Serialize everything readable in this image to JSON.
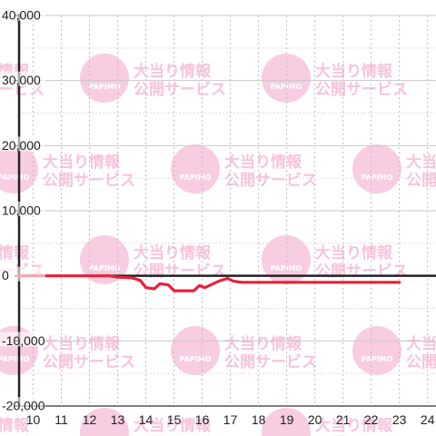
{
  "watermark": {
    "line1": "大当り情報",
    "line2": "公開サービス",
    "logo_text": "PAPIMO",
    "color": "#f7c4dc"
  },
  "chart_data": {
    "type": "line",
    "title": "",
    "xlabel": "",
    "ylabel": "",
    "xlim": [
      9.5,
      24.3
    ],
    "ylim": [
      -20000,
      40000
    ],
    "x_ticks": [
      10,
      11,
      12,
      13,
      14,
      15,
      16,
      17,
      18,
      19,
      20,
      21,
      22,
      23,
      24
    ],
    "y_ticks": [
      {
        "value": 40000,
        "label": "40,000"
      },
      {
        "value": 30000,
        "label": "30,000"
      },
      {
        "value": 20000,
        "label": "20,000"
      },
      {
        "value": 10000,
        "label": "10,000"
      },
      {
        "value": 0,
        "label": "0"
      },
      {
        "value": -10000,
        "label": "-10,000"
      },
      {
        "value": -20000,
        "label": "-20,000"
      }
    ],
    "grid": true,
    "line_color": "#e8213a",
    "series": [
      {
        "x": [
          9.5,
          12.7,
          13.0,
          13.5,
          13.8,
          14.0,
          14.3,
          14.5,
          14.8,
          15.0,
          15.3,
          15.7,
          15.9,
          16.1,
          16.3,
          16.6,
          16.9,
          17.1,
          17.4,
          18.0,
          20.0,
          22.0,
          23.0
        ],
        "y": [
          0,
          0,
          -200,
          -300,
          -700,
          -1800,
          -2000,
          -1200,
          -1400,
          -2300,
          -2300,
          -2300,
          -1500,
          -1800,
          -1400,
          -800,
          -400,
          -800,
          -1000,
          -1000,
          -1000,
          -1000,
          -1000
        ]
      }
    ]
  }
}
